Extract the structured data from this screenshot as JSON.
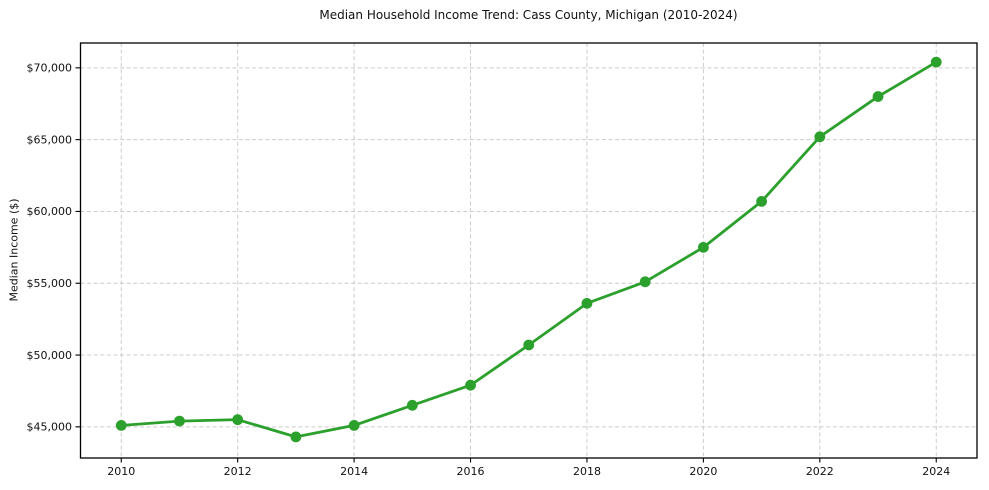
{
  "chart_data": {
    "type": "line",
    "title": "Median Household Income Trend: Cass County, Michigan (2010-2024)",
    "xlabel": "",
    "ylabel": "Median Income ($)",
    "x": [
      2010,
      2011,
      2012,
      2013,
      2014,
      2015,
      2016,
      2017,
      2018,
      2019,
      2020,
      2021,
      2022,
      2023,
      2024
    ],
    "values": [
      45100,
      45400,
      45500,
      44300,
      45100,
      46500,
      47900,
      50700,
      53600,
      55100,
      57500,
      60700,
      65200,
      68000,
      70400
    ],
    "xlim": [
      2009.3,
      2024.7
    ],
    "ylim": [
      42830,
      71730
    ],
    "xticks": [
      2010,
      2012,
      2014,
      2016,
      2018,
      2020,
      2022,
      2024
    ],
    "xtick_labels": [
      "2010",
      "2012",
      "2014",
      "2016",
      "2018",
      "2020",
      "2022",
      "2024"
    ],
    "yticks": [
      45000,
      50000,
      55000,
      60000,
      65000,
      70000
    ],
    "ytick_labels": [
      "$45,000",
      "$50,000",
      "$55,000",
      "$60,000",
      "$65,000",
      "$70,000"
    ],
    "grid": true,
    "grid_style": "dashed",
    "legend": "none",
    "line_color": "#2ca02c",
    "marker": "circle",
    "grid_color": "#cccccc",
    "spine_color": "#000000",
    "text_color": "#111111",
    "background": "#ffffff"
  }
}
